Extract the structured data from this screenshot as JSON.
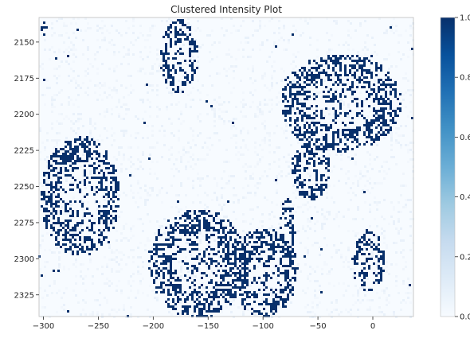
{
  "chart_data": {
    "type": "heatmap",
    "title": "Clustered Intensity Plot",
    "xlabel": "",
    "ylabel": "",
    "xlim": [
      -304,
      37
    ],
    "ylim": [
      2340,
      2133
    ],
    "y_inverted": true,
    "x_ticks": [
      -300,
      -250,
      -200,
      -150,
      -100,
      -50,
      0
    ],
    "x_tick_labels": [
      "−300",
      "−250",
      "−200",
      "−150",
      "−100",
      "−50",
      "0"
    ],
    "y_ticks": [
      2150,
      2175,
      2200,
      2225,
      2250,
      2275,
      2300,
      2325
    ],
    "y_tick_labels": [
      "2150",
      "2175",
      "2200",
      "2225",
      "2250",
      "2275",
      "2300",
      "2325"
    ],
    "colormap": "Blues",
    "colorbar": {
      "min": 0.0,
      "max": 1.0,
      "ticks": [
        0.0,
        0.2,
        0.4,
        0.6,
        0.8,
        1.0
      ],
      "tick_labels": [
        "0.0",
        "0.2",
        "0.4",
        "0.6",
        "0.8",
        "1.0"
      ]
    },
    "color_low": "#f7fbff",
    "color_high": "#08306b",
    "background_color": "#ffffff",
    "grid": false,
    "clusters": [
      {
        "region": "top-left strip",
        "x_range": [
          -304,
          -299
        ],
        "y_range": [
          2133,
          2145
        ],
        "intensity": 1.0
      },
      {
        "region": "upper centre-left",
        "x_range": [
          -195,
          -160
        ],
        "y_range": [
          2133,
          2185
        ],
        "intensity": 1.0
      },
      {
        "region": "upper right arc",
        "x_range": [
          -85,
          25
        ],
        "y_range": [
          2158,
          2225
        ],
        "intensity": 1.0
      },
      {
        "region": "left blob",
        "x_range": [
          -304,
          -232
        ],
        "y_range": [
          2215,
          2297
        ],
        "intensity": 1.0
      },
      {
        "region": "centre ring",
        "x_range": [
          -205,
          -115
        ],
        "y_range": [
          2265,
          2340
        ],
        "intensity": 1.0
      },
      {
        "region": "right-centre ring",
        "x_range": [
          -75,
          -40
        ],
        "y_range": [
          2218,
          2258
        ],
        "intensity": 1.0
      },
      {
        "region": "bottom centre",
        "x_range": [
          -130,
          -70
        ],
        "y_range": [
          2278,
          2340
        ],
        "intensity": 1.0
      },
      {
        "region": "right oval",
        "x_range": [
          -20,
          10
        ],
        "y_range": [
          2280,
          2322
        ],
        "intensity": 1.0
      },
      {
        "region": "small right strip",
        "x_range": [
          -85,
          -72
        ],
        "y_range": [
          2258,
          2300
        ],
        "intensity": 1.0
      }
    ]
  }
}
